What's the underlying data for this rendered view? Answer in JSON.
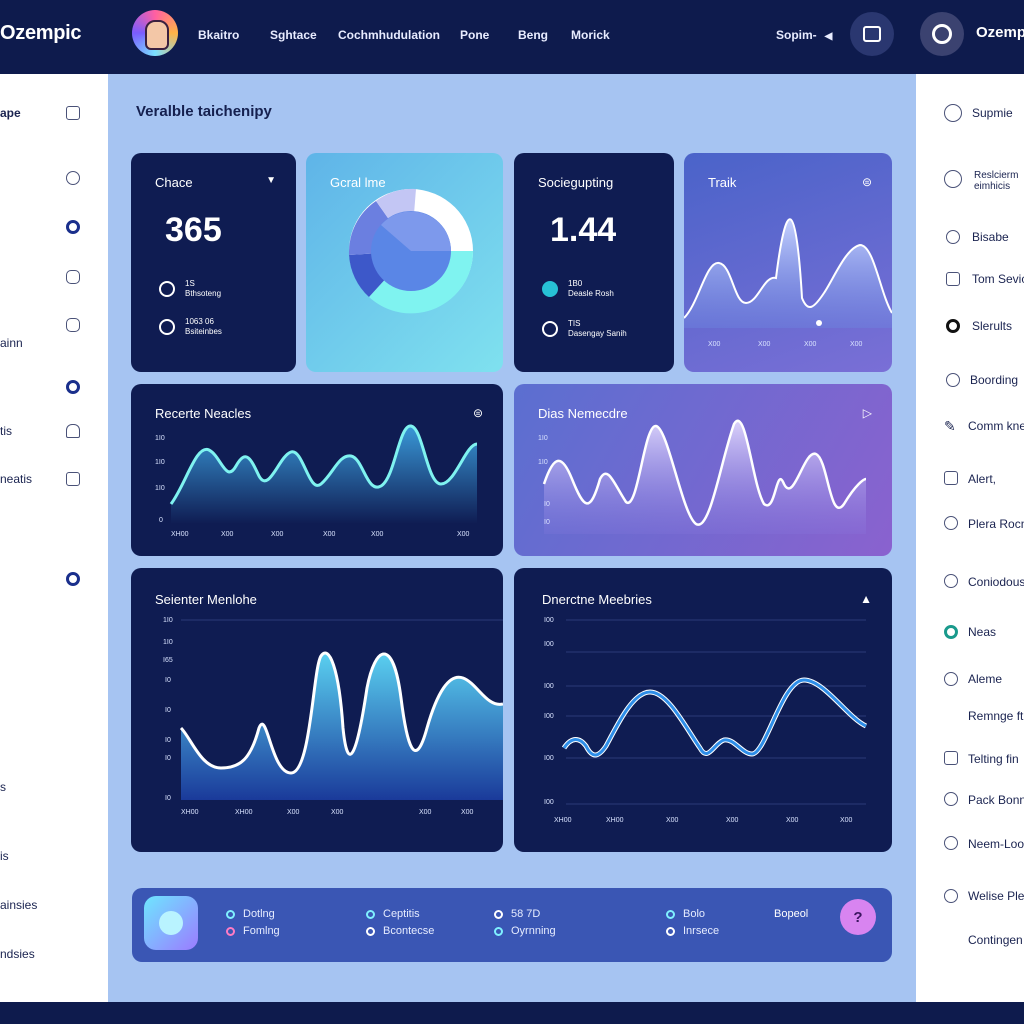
{
  "app": {
    "brand": "Ozempic",
    "user_name": "Ozemp"
  },
  "nav": [
    "Bkaitro",
    "Sghtace",
    "Cochmhudulation",
    "Pone",
    "Beng",
    "Morick"
  ],
  "top_select": "Sopim-",
  "left_sidebar": [
    "ape",
    "ainn",
    "tis",
    "neatis",
    "s",
    "is",
    "ainsies",
    "ndsies"
  ],
  "right_sidebar": [
    "Supmie",
    "Reslcierm eimhicis",
    "Bisabe",
    "Tom Sevice",
    "Slerults",
    "Boording",
    "Comm knes",
    "Alert,",
    "Plera Rocn",
    "Coniodous",
    "Neas",
    "Aleme",
    "Remnge ft",
    "Telting fin",
    "Pack Bonn",
    "Neem-Loon",
    "Welise Pler",
    "Contingen"
  ],
  "page_title": "Veralble taichenipy",
  "cards": {
    "chace": {
      "title": "Chace",
      "value": "365",
      "rows": [
        [
          "1S",
          "Bthsoteng"
        ],
        [
          "1063 06",
          "Bsiteinbes"
        ]
      ]
    },
    "goal": {
      "title": "Gcral lme"
    },
    "soci": {
      "title": "Sociegupting",
      "value": "1.44",
      "rows": [
        [
          "1B0",
          "Deasle Rosh"
        ],
        [
          "TIS",
          "Dasengay Sanih"
        ]
      ]
    },
    "trak": {
      "title": "Traik",
      "xticks": [
        "X00",
        "X00",
        "X00",
        "X00"
      ]
    },
    "recente": {
      "title": "Recerte Neacles",
      "yticks": [
        "1I0",
        "1I0",
        "1I0",
        "0"
      ],
      "xticks": [
        "XH00",
        "X00",
        "X00",
        "X00",
        "X00",
        "X00"
      ]
    },
    "dias": {
      "title": "Dias Nemecdre",
      "yticks": [
        "1I0",
        "1I0",
        "I0",
        "I0"
      ]
    },
    "seienter": {
      "title": "Seienter Menlohe",
      "yticks": [
        "1I0",
        "1I0",
        "I65",
        "I0",
        "I0",
        "I0",
        "I0",
        "I0"
      ],
      "xticks": [
        "XH00",
        "XH00",
        "X00",
        "X00",
        "X00",
        "X00"
      ]
    },
    "dnerctne": {
      "title": "Dnerctne Meebries",
      "yticks": [
        "I00",
        "I00",
        "I00",
        "I00",
        "I00",
        "I00"
      ],
      "xticks": [
        "XH00",
        "XH00",
        "X00",
        "X00",
        "X00",
        "X00"
      ]
    }
  },
  "bottom": {
    "legend": [
      [
        "Dotlng",
        "Fomlng"
      ],
      [
        "Ceptitis",
        "Bcontecse"
      ],
      [
        "58 7D",
        "Oyrnning"
      ],
      [
        "Bolo",
        "Inrsece"
      ]
    ],
    "user": "Bopeol",
    "help": "?"
  }
}
